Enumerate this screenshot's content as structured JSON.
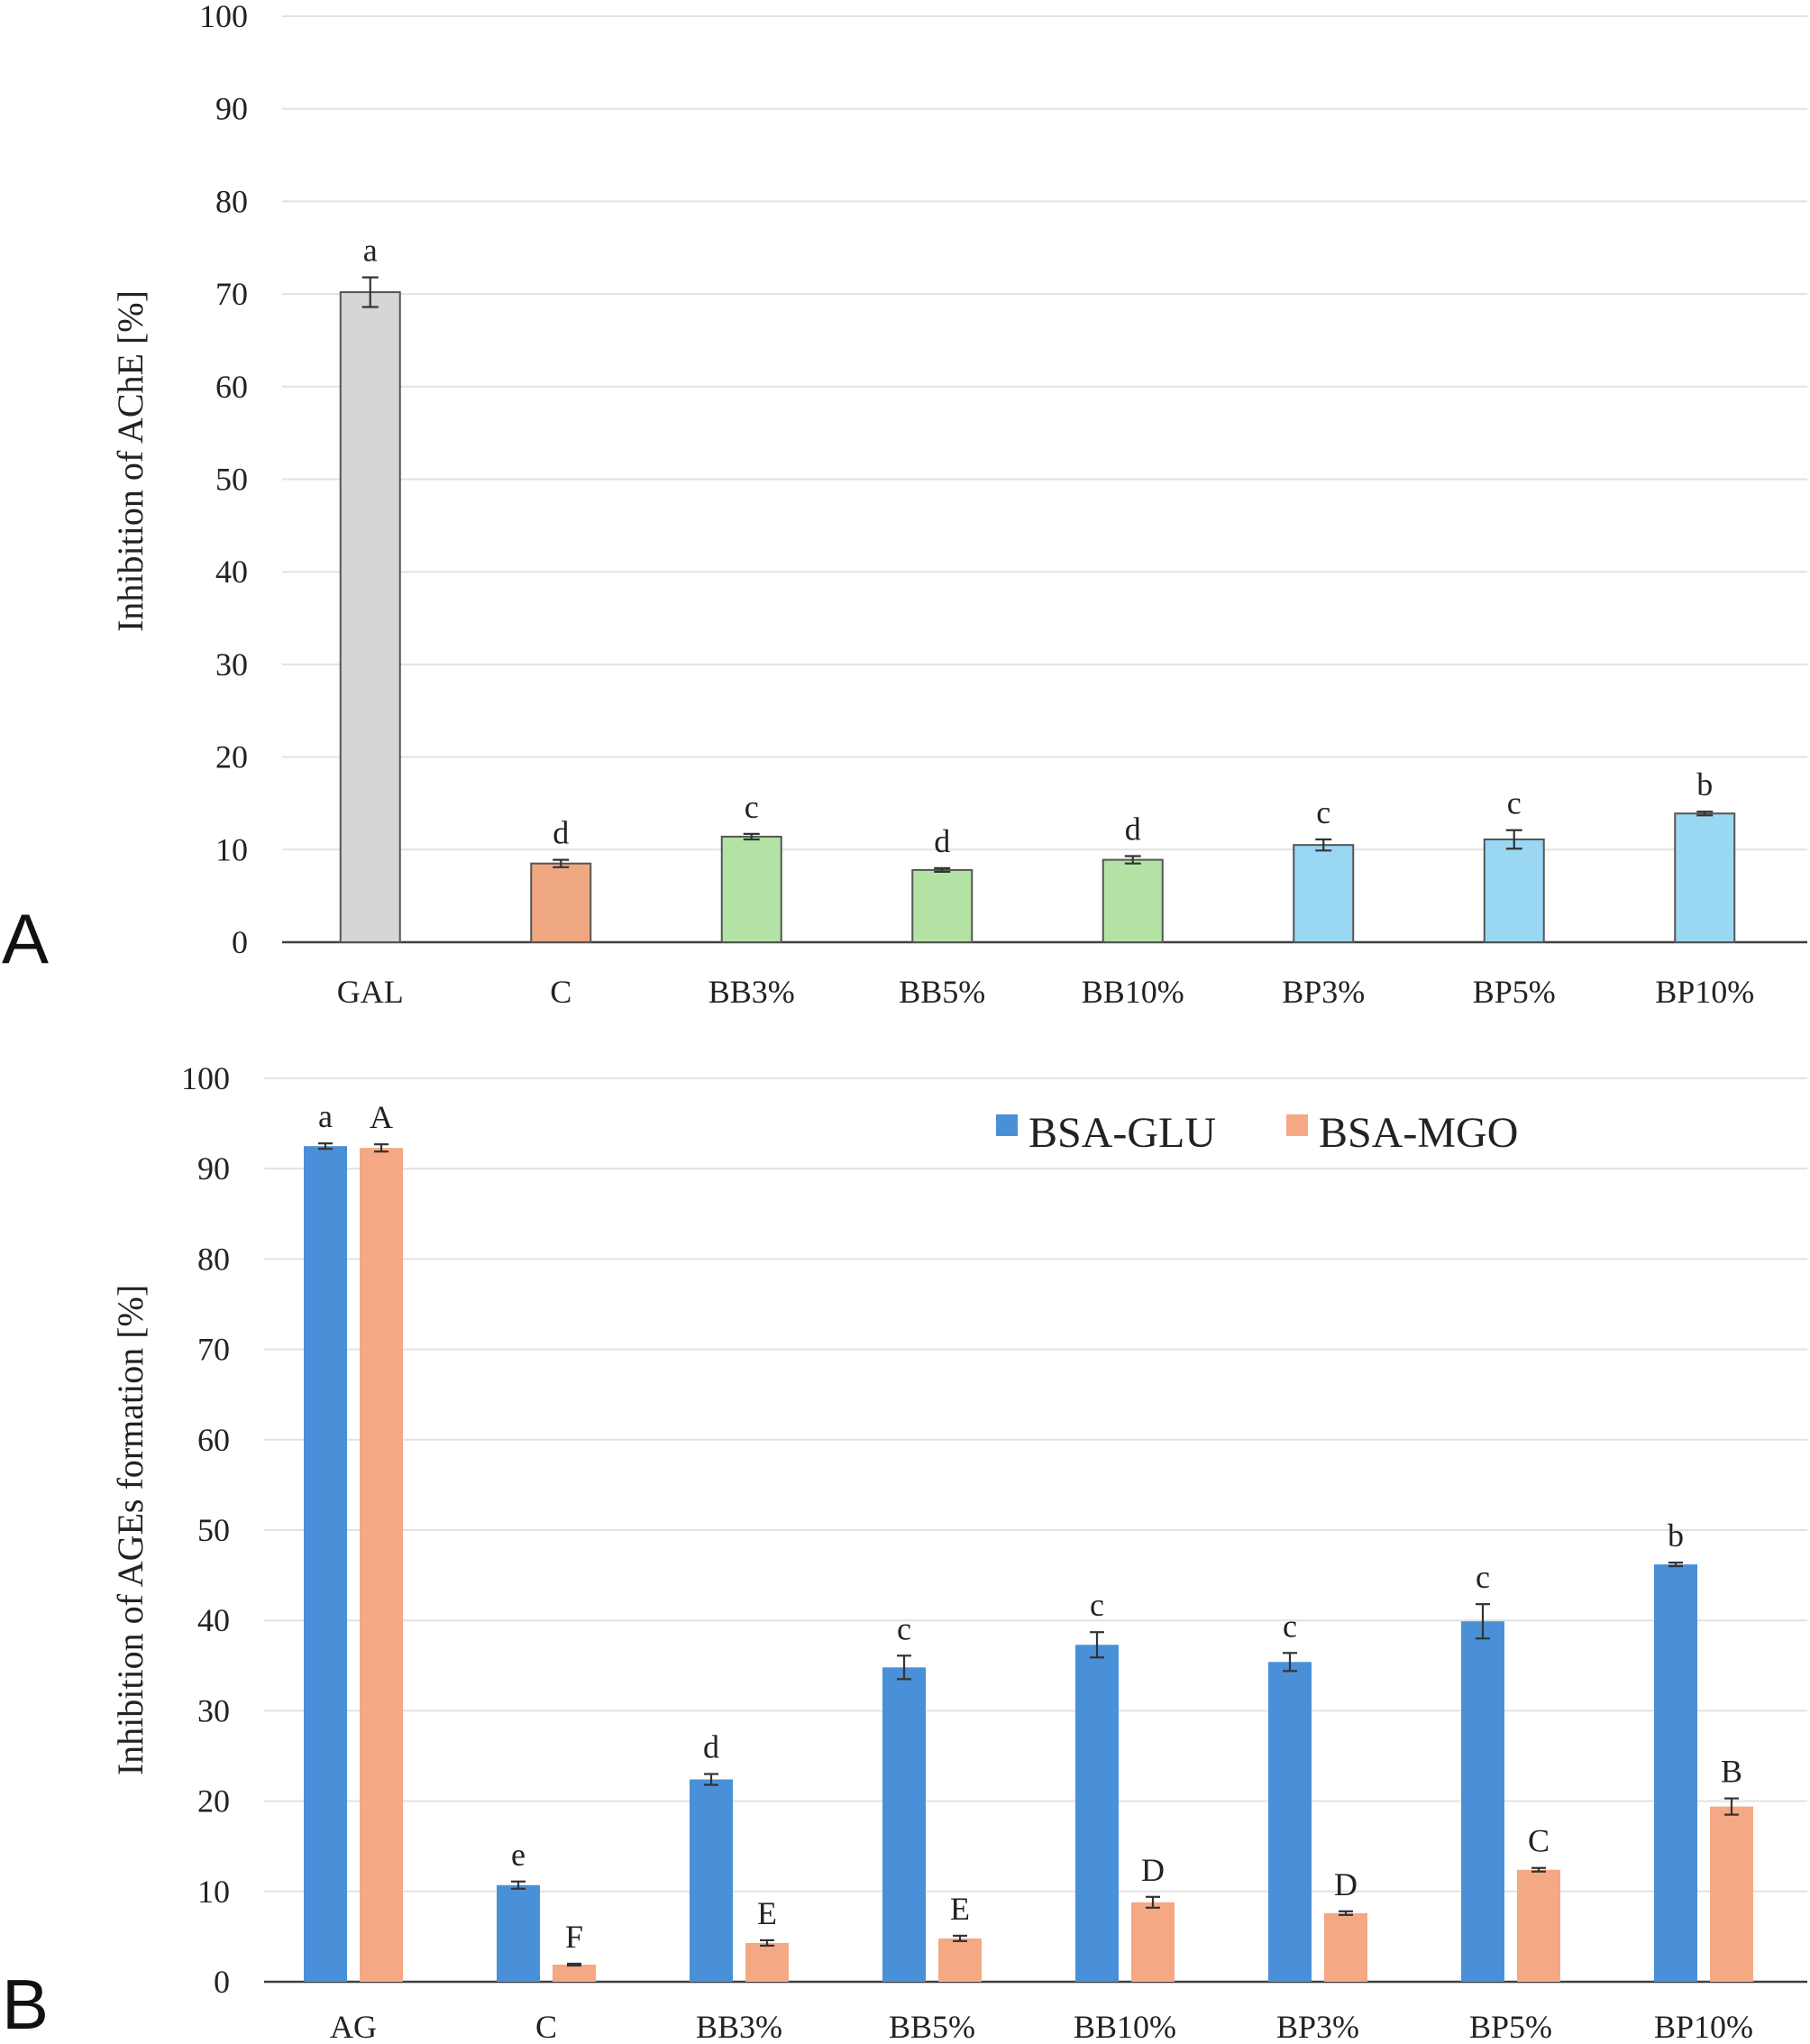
{
  "chart_data": [
    {
      "panel": "A",
      "type": "bar",
      "title": "",
      "xlabel": "",
      "ylabel": "Inhibition of AChE [%]",
      "ylim": [
        0,
        100
      ],
      "yticks": [
        0,
        10,
        20,
        30,
        40,
        50,
        60,
        70,
        80,
        90,
        100
      ],
      "grid": true,
      "categories": [
        "GAL",
        "C",
        "BB3%",
        "BB5%",
        "BB10%",
        "BP3%",
        "BP5%",
        "BP10%"
      ],
      "values": [
        70.2,
        8.5,
        11.4,
        7.8,
        8.9,
        10.5,
        11.1,
        13.9
      ],
      "errors": [
        1.6,
        0.4,
        0.3,
        0.2,
        0.4,
        0.6,
        1.0,
        0.2
      ],
      "labels": [
        "a",
        "d",
        "c",
        "d",
        "d",
        "c",
        "c",
        "b"
      ],
      "bar_colors": [
        "#d6d6d6",
        "#f0a882",
        "#b3e3a4",
        "#b3e3a4",
        "#b3e3a4",
        "#9ad7f2",
        "#9ad7f2",
        "#9ad7f2"
      ]
    },
    {
      "panel": "B",
      "type": "bar",
      "title": "",
      "xlabel": "",
      "ylabel": "Inhibition of AGEs formation [%]",
      "ylim": [
        0,
        100
      ],
      "yticks": [
        0,
        10,
        20,
        30,
        40,
        50,
        60,
        70,
        80,
        90,
        100
      ],
      "grid": true,
      "legend_position": "top-right",
      "categories": [
        "AG",
        "C",
        "BB3%",
        "BB5%",
        "BB10%",
        "BP3%",
        "BP5%",
        "BP10%"
      ],
      "series": [
        {
          "name": "BSA-GLU",
          "color": "#4a90d9",
          "values": [
            92.5,
            10.7,
            22.4,
            34.8,
            37.3,
            35.4,
            39.9,
            46.2
          ],
          "errors": [
            0.3,
            0.4,
            0.6,
            1.3,
            1.4,
            1.0,
            1.9,
            0.2
          ],
          "labels": [
            "a",
            "e",
            "d",
            "c",
            "c",
            "c",
            "c",
            "b"
          ]
        },
        {
          "name": "BSA-MGO",
          "color": "#f4a984",
          "values": [
            92.3,
            1.9,
            4.3,
            4.8,
            8.8,
            7.6,
            12.4,
            19.4
          ],
          "errors": [
            0.4,
            0.1,
            0.3,
            0.3,
            0.6,
            0.2,
            0.2,
            0.9
          ],
          "labels": [
            "A",
            "F",
            "E",
            "E",
            "D",
            "D",
            "C",
            "B"
          ]
        }
      ]
    }
  ],
  "panel_labels": [
    "A",
    "B"
  ]
}
